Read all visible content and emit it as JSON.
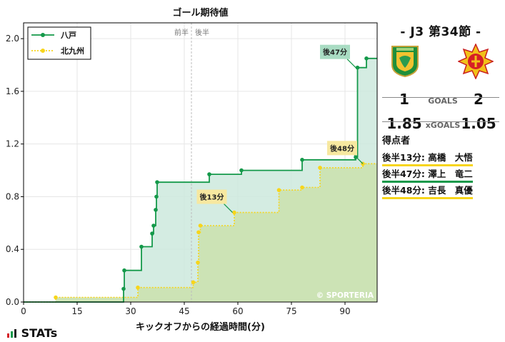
{
  "chart_data": {
    "type": "line",
    "title": "ゴール期待値",
    "xlabel": "キックオフからの経過時間(分)",
    "ylabel": "",
    "xlim": [
      0,
      99
    ],
    "ylim": [
      0,
      2.12
    ],
    "xticks": [
      0,
      15,
      30,
      45,
      60,
      75,
      90
    ],
    "yticks": [
      0.0,
      0.4,
      0.8,
      1.2,
      1.6,
      2.0
    ],
    "ytick_labels": [
      "0.0",
      "0.4",
      "0.8",
      "1.2",
      "1.6",
      "2.0"
    ],
    "grid": true,
    "step": true,
    "legend_position": "top-left",
    "halftime_x": 47,
    "halftime_labels": [
      "前半",
      "後半"
    ],
    "watermark": "© SPORTERIA",
    "series": [
      {
        "name": "八戸",
        "color": "#14994a",
        "fill": "#cde9dd",
        "line_style": "solid",
        "x": [
          0,
          28,
          28.2,
          33,
          36,
          36.4,
          37,
          37.2,
          37.4,
          52,
          61,
          78,
          93,
          93.5,
          96,
          99
        ],
        "y": [
          0,
          0.1,
          0.24,
          0.42,
          0.52,
          0.58,
          0.7,
          0.8,
          0.91,
          0.97,
          1.0,
          1.08,
          1.1,
          1.78,
          1.85,
          1.85
        ],
        "markers": [
          false,
          true,
          true,
          true,
          true,
          true,
          true,
          true,
          true,
          true,
          true,
          true,
          true,
          true,
          true,
          false
        ]
      },
      {
        "name": "北九州",
        "color": "#f7d51b",
        "fill": "#cbe2b0",
        "line_style": "dotted",
        "x": [
          0,
          9,
          32,
          47.5,
          48.8,
          49,
          49.5,
          59,
          71.5,
          78,
          83,
          95,
          99
        ],
        "y": [
          0,
          0.035,
          0.11,
          0.15,
          0.3,
          0.53,
          0.58,
          0.68,
          0.85,
          0.87,
          1.02,
          1.05,
          1.05
        ],
        "markers": [
          false,
          true,
          true,
          true,
          true,
          true,
          true,
          true,
          true,
          true,
          true,
          true,
          false
        ]
      }
    ],
    "annotations": [
      {
        "text": "後13分",
        "x": 58.5,
        "y": 0.68,
        "color": "#f7e8a0"
      },
      {
        "text": "後47分",
        "x": 93,
        "y": 1.78,
        "color": "#a9dcc3"
      },
      {
        "text": "後48分",
        "x": 95,
        "y": 1.05,
        "color": "#f7e8a0"
      }
    ]
  },
  "match": {
    "title": "-  J3 第34節  -",
    "home_score": "1",
    "away_score": "2",
    "goals_label": "GOALS",
    "home_xg": "1.85",
    "away_xg": "1.05",
    "xg_label": "xGOALS",
    "home_color": "#14994a",
    "away_color": "#f7d51b"
  },
  "scorers": {
    "title": "得点者",
    "items": [
      {
        "label": "後半13分: 高橋　大悟",
        "team": "away"
      },
      {
        "label": "後半47分: 澤上　竜二",
        "team": "home"
      },
      {
        "label": "後半48分: 吉長　真優",
        "team": "away"
      }
    ]
  },
  "brand": {
    "logo_text": "STATs"
  }
}
